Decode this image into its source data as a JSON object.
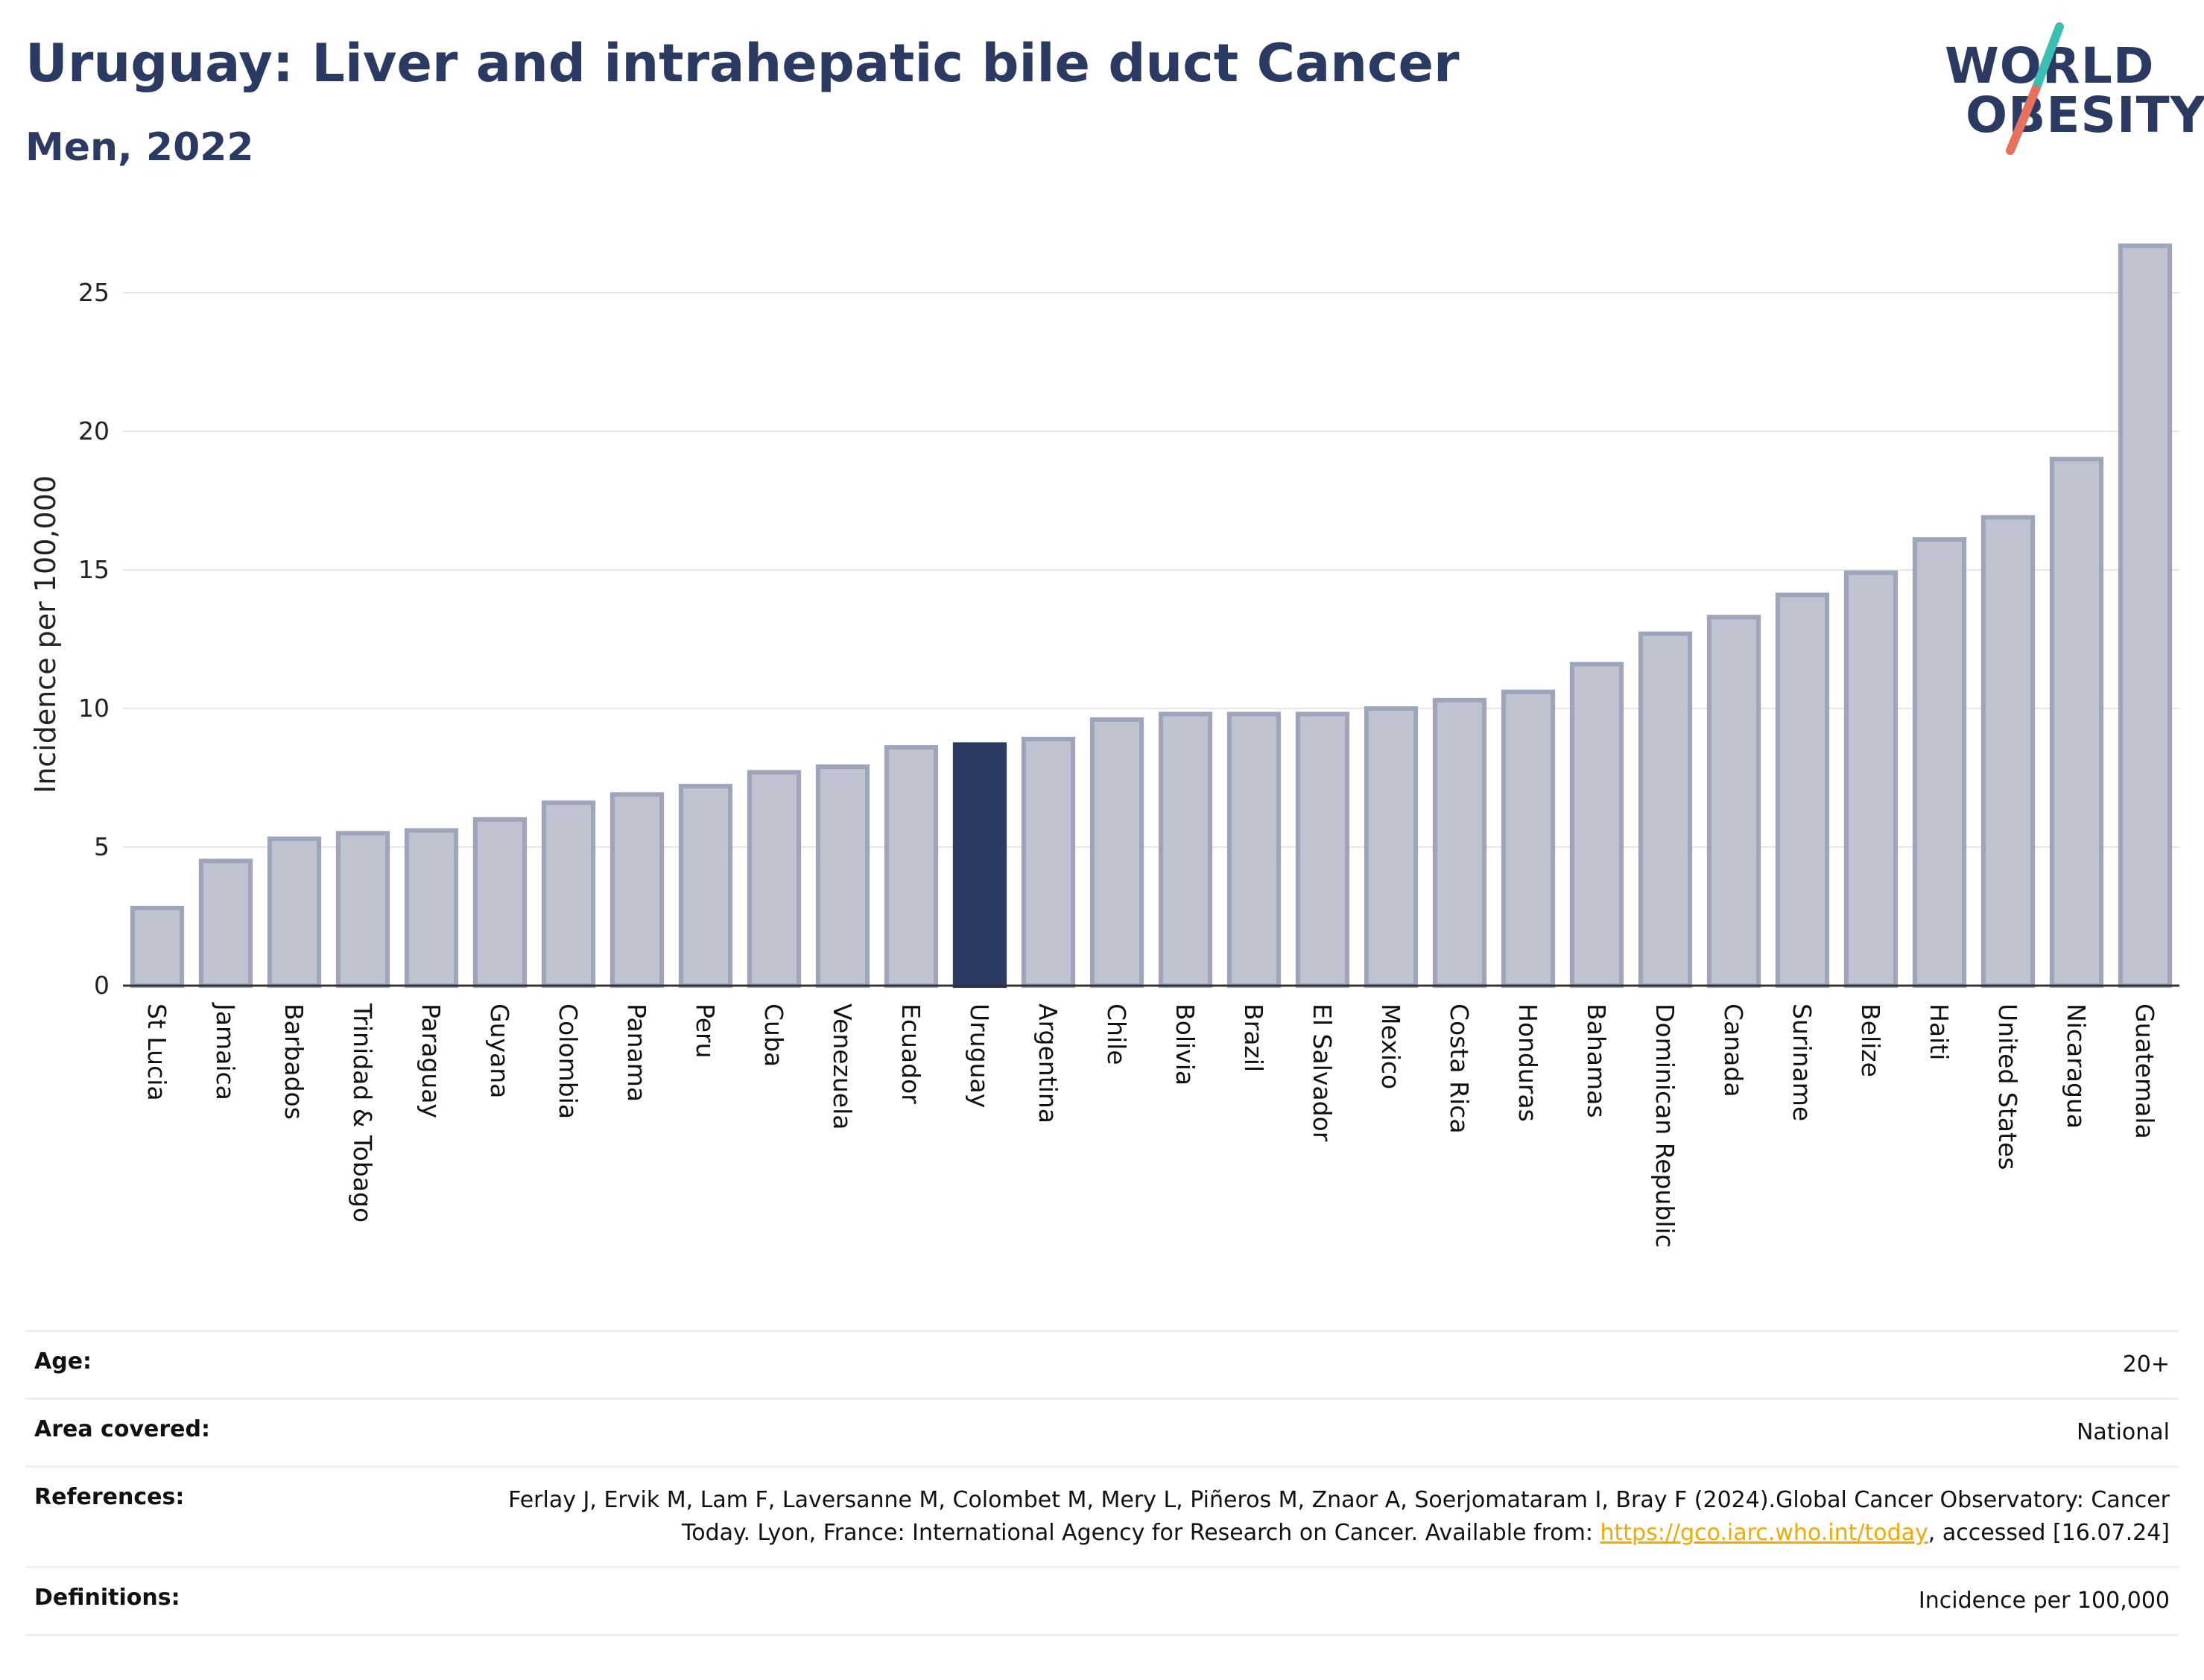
{
  "header": {
    "title": "Uruguay: Liver and intrahepatic bile duct Cancer",
    "subtitle": "Men, 2022"
  },
  "logo": {
    "line1": "WORLD",
    "line2": "OBESITY",
    "colors": {
      "text": "#2b3a63",
      "slash_top": "#3bbfb2",
      "slash_bottom": "#e8705f"
    }
  },
  "chart_data": {
    "type": "bar",
    "ylabel": "Incidence per 100,000",
    "xlabel": "",
    "ylim": [
      0,
      27.5
    ],
    "yticks": [
      0,
      5,
      10,
      15,
      20,
      25
    ],
    "grid": true,
    "highlight": "Uruguay",
    "colors": {
      "bar": "#bfc3d0",
      "bar_edge": "#9ea4ba",
      "highlight": "#2b3a63"
    },
    "categories": [
      "St Lucia",
      "Jamaica",
      "Barbados",
      "Trinidad & Tobago",
      "Paraguay",
      "Guyana",
      "Colombia",
      "Panama",
      "Peru",
      "Cuba",
      "Venezuela",
      "Ecuador",
      "Uruguay",
      "Argentina",
      "Chile",
      "Bolivia",
      "Brazil",
      "El Salvador",
      "Mexico",
      "Costa Rica",
      "Honduras",
      "Bahamas",
      "Dominican Republic",
      "Canada",
      "Suriname",
      "Belize",
      "Haiti",
      "United States",
      "Nicaragua",
      "Guatemala"
    ],
    "values": [
      2.8,
      4.5,
      5.3,
      5.5,
      5.6,
      6.0,
      6.6,
      6.9,
      7.2,
      7.7,
      7.9,
      8.6,
      8.7,
      8.9,
      9.6,
      9.8,
      9.8,
      9.8,
      10.0,
      10.3,
      10.6,
      11.6,
      12.7,
      13.3,
      14.1,
      14.9,
      16.1,
      16.9,
      19.0,
      26.7
    ]
  },
  "info": {
    "age_label": "Age:",
    "age_value": "20+",
    "area_label": "Area covered:",
    "area_value": "National",
    "references_label": "References:",
    "references_text1": "Ferlay J, Ervik M, Lam F, Laversanne M, Colombet M, Mery L, Piñeros M, Znaor A, Soerjomataram I, Bray F (2024).Global Cancer Observatory: Cancer Today. Lyon, France: International Agency for Research on Cancer. Available from: ",
    "references_link": "https://gco.iarc.who.int/today",
    "references_text2": ", accessed [16.07.24]",
    "definitions_label": "Definitions:",
    "definitions_value": "Incidence per 100,000"
  }
}
